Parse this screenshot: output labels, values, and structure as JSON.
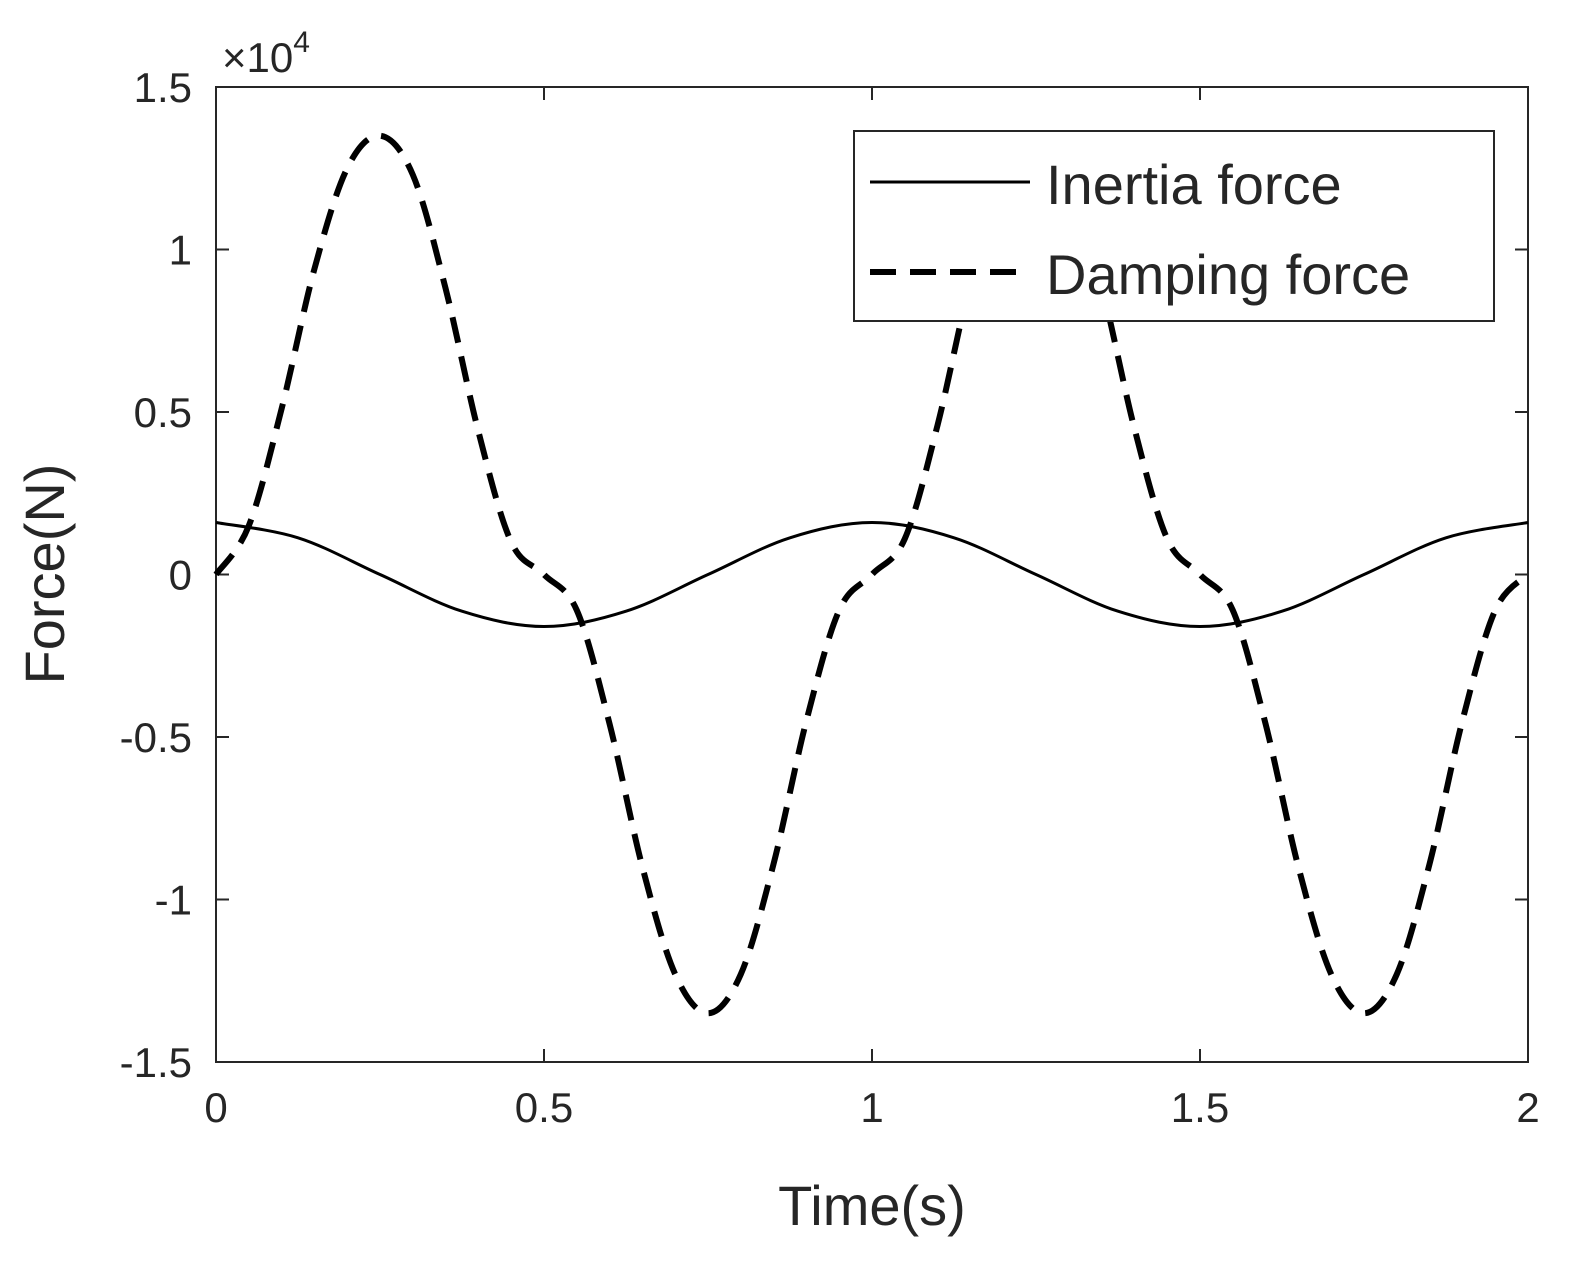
{
  "chart_data": {
    "type": "line",
    "xlabel": "Time(s)",
    "ylabel": "Force(N)",
    "xlim": [
      0,
      2
    ],
    "ylim": [
      -15000,
      15000
    ],
    "y_exponent_label": "×10",
    "y_exponent_power": "4",
    "x_ticks": [
      0,
      0.5,
      1,
      1.5,
      2
    ],
    "x_tick_labels": [
      "0",
      "0.5",
      "1",
      "1.5",
      "2"
    ],
    "y_ticks": [
      -15000,
      -10000,
      -5000,
      0,
      5000,
      10000,
      15000
    ],
    "y_tick_labels": [
      "-1.5",
      "-1",
      "-0.5",
      "0",
      "0.5",
      "1",
      "1.5"
    ],
    "grid": false,
    "legend_position": "top-right",
    "series": [
      {
        "name": "Inertia force",
        "style": "solid",
        "color": "#000000",
        "x": [
          0,
          0.125,
          0.25,
          0.375,
          0.5,
          0.625,
          0.75,
          0.875,
          1.0,
          1.125,
          1.25,
          1.375,
          1.5,
          1.625,
          1.75,
          1.875,
          2.0
        ],
        "y": [
          1600,
          1130,
          0,
          -1130,
          -1600,
          -1130,
          0,
          1130,
          1600,
          1130,
          0,
          -1130,
          -1600,
          -1130,
          0,
          1130,
          1600
        ]
      },
      {
        "name": "Damping force",
        "style": "dashed",
        "color": "#000000",
        "x": [
          0,
          0.05,
          0.1,
          0.15,
          0.2,
          0.25,
          0.3,
          0.35,
          0.4,
          0.45,
          0.5,
          0.55,
          0.6,
          0.65,
          0.7,
          0.75,
          0.8,
          0.85,
          0.9,
          0.95,
          1.0,
          1.05,
          1.1,
          1.15,
          1.2,
          1.25,
          1.3,
          1.35,
          1.4,
          1.45,
          1.5,
          1.55,
          1.6,
          1.65,
          1.7,
          1.75,
          1.8,
          1.85,
          1.9,
          1.95,
          2.0
        ],
        "y": [
          0,
          1500,
          5100,
          9400,
          12500,
          13500,
          12300,
          8800,
          4400,
          1000,
          0,
          -1100,
          -4600,
          -9000,
          -12300,
          -13500,
          -12300,
          -8900,
          -4500,
          -1100,
          0,
          1100,
          4600,
          9000,
          12300,
          13500,
          12300,
          8900,
          4500,
          1100,
          0,
          -1100,
          -4600,
          -9000,
          -12300,
          -13500,
          -12300,
          -8900,
          -4500,
          -1100,
          0
        ]
      }
    ]
  }
}
